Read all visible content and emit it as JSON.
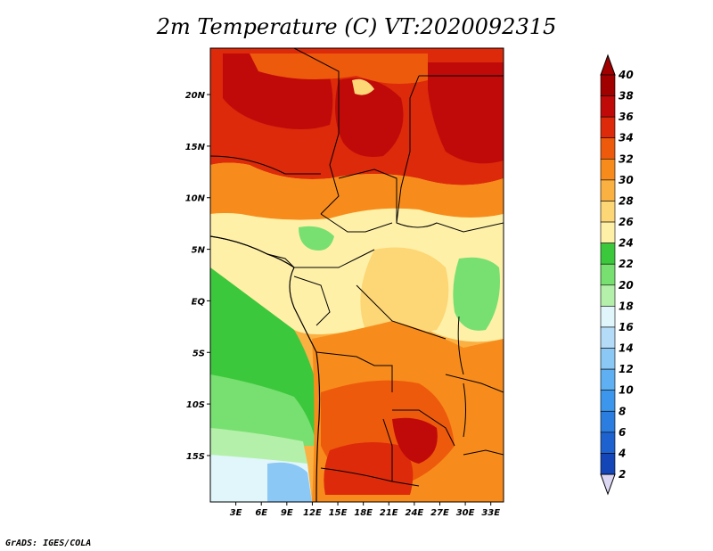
{
  "title": "2m Temperature (C) VT:2020092315",
  "credit": "GrADS: IGES/COLA",
  "map": {
    "lon_range": [
      0,
      34.5
    ],
    "lat_range": [
      -19.5,
      24.5
    ],
    "lat_ticks": [
      {
        "value": 20,
        "label": "20N"
      },
      {
        "value": 15,
        "label": "15N"
      },
      {
        "value": 10,
        "label": "10N"
      },
      {
        "value": 5,
        "label": "5N"
      },
      {
        "value": 0,
        "label": "EQ"
      },
      {
        "value": -5,
        "label": "5S"
      },
      {
        "value": -10,
        "label": "10S"
      },
      {
        "value": -15,
        "label": "15S"
      }
    ],
    "lon_ticks": [
      {
        "value": 3,
        "label": "3E"
      },
      {
        "value": 6,
        "label": "6E"
      },
      {
        "value": 9,
        "label": "9E"
      },
      {
        "value": 12,
        "label": "12E"
      },
      {
        "value": 15,
        "label": "15E"
      },
      {
        "value": 18,
        "label": "18E"
      },
      {
        "value": 21,
        "label": "21E"
      },
      {
        "value": 24,
        "label": "24E"
      },
      {
        "value": 27,
        "label": "27E"
      },
      {
        "value": 30,
        "label": "30E"
      },
      {
        "value": 33,
        "label": "33E"
      }
    ]
  },
  "colorbar": {
    "levels": [
      {
        "value": 2,
        "label": "2",
        "color": "#0b1a6e"
      },
      {
        "value": 4,
        "label": "4",
        "color": "#1446b8"
      },
      {
        "value": 6,
        "label": "6",
        "color": "#1e62d0"
      },
      {
        "value": 8,
        "label": "8",
        "color": "#2b7ee0"
      },
      {
        "value": 10,
        "label": "10",
        "color": "#3c96ec"
      },
      {
        "value": 12,
        "label": "12",
        "color": "#5eb0f2"
      },
      {
        "value": 14,
        "label": "14",
        "color": "#8cc8f6"
      },
      {
        "value": 16,
        "label": "16",
        "color": "#b4dcf8"
      },
      {
        "value": 18,
        "label": "18",
        "color": "#e0f6fb"
      },
      {
        "value": 20,
        "label": "20",
        "color": "#b4f0aa"
      },
      {
        "value": 22,
        "label": "22",
        "color": "#78e070"
      },
      {
        "value": 24,
        "label": "24",
        "color": "#3cc83c"
      },
      {
        "value": 26,
        "label": "26",
        "color": "#fff0a8"
      },
      {
        "value": 28,
        "label": "28",
        "color": "#fdd676"
      },
      {
        "value": 30,
        "label": "30",
        "color": "#fbb042"
      },
      {
        "value": 32,
        "label": "32",
        "color": "#f78c1c"
      },
      {
        "value": 34,
        "label": "34",
        "color": "#ee5a0c"
      },
      {
        "value": 36,
        "label": "36",
        "color": "#dc2a0a"
      },
      {
        "value": 38,
        "label": "38",
        "color": "#c00a0a"
      },
      {
        "value": 40,
        "label": "40",
        "color": "#a00000"
      }
    ],
    "under_color": "#dcd8f4",
    "over_color": "#a00000"
  }
}
